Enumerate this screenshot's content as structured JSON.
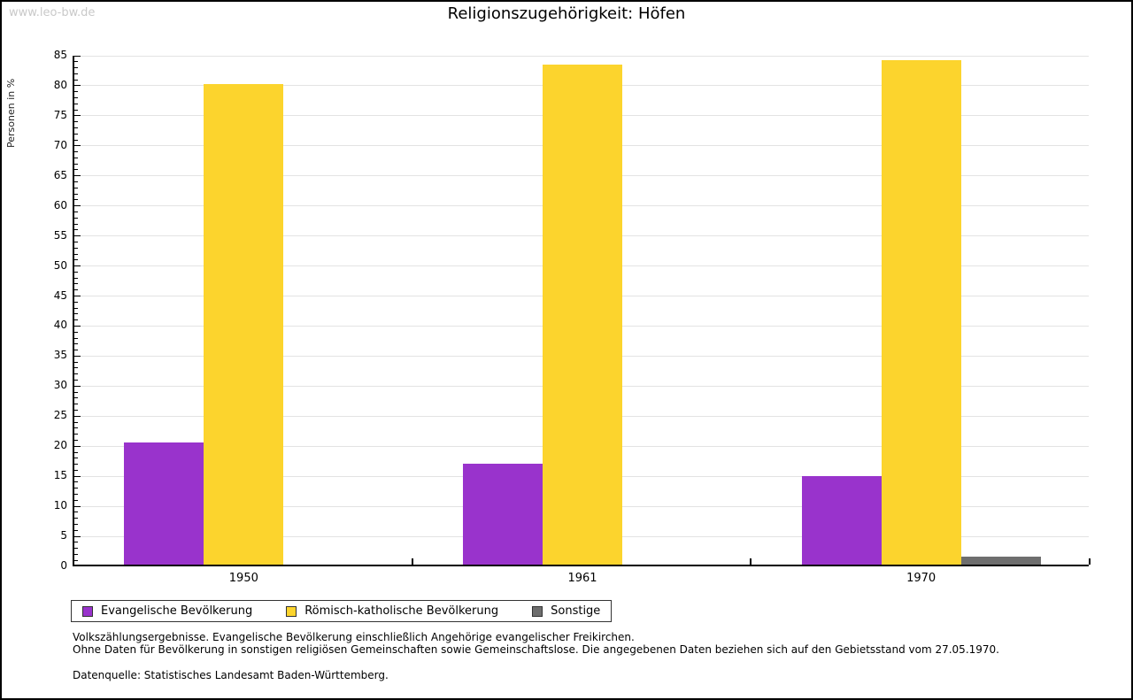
{
  "watermark": "www.leo-bw.de",
  "title": "Religionszugehörigkeit: Höfen",
  "chart_data": {
    "type": "bar",
    "categories": [
      "1950",
      "1961",
      "1970"
    ],
    "series": [
      {
        "name": "Evangelische Bevölkerung",
        "color": "#9933cc",
        "values": [
          20.3,
          16.8,
          14.7
        ]
      },
      {
        "name": "Römisch-katholische Bevölkerung",
        "color": "#fcd42d",
        "values": [
          80.0,
          83.3,
          84.0
        ]
      },
      {
        "name": "Sonstige",
        "color": "#6e6e6e",
        "values": [
          0,
          0,
          1.4
        ]
      }
    ],
    "xlabel": "",
    "ylabel": "Personen in %",
    "ylim": [
      0,
      85
    ],
    "ytick_major_step": 5,
    "ytick_minor_step": 1,
    "grid": "horizontal-major",
    "gridline_color": "#e3e3e3",
    "legend_position": "bottom-left"
  },
  "footnotes": [
    "Volkszählungsergebnisse. Evangelische Bevölkerung einschließlich Angehörige evangelischer Freikirchen.",
    "Ohne Daten für Bevölkerung in sonstigen religiösen Gemeinschaften sowie Gemeinschaftslose. Die angegebenen Daten beziehen sich auf den Gebietsstand vom 27.05.1970.",
    "Datenquelle: Statistisches Landesamt Baden-Württemberg."
  ]
}
